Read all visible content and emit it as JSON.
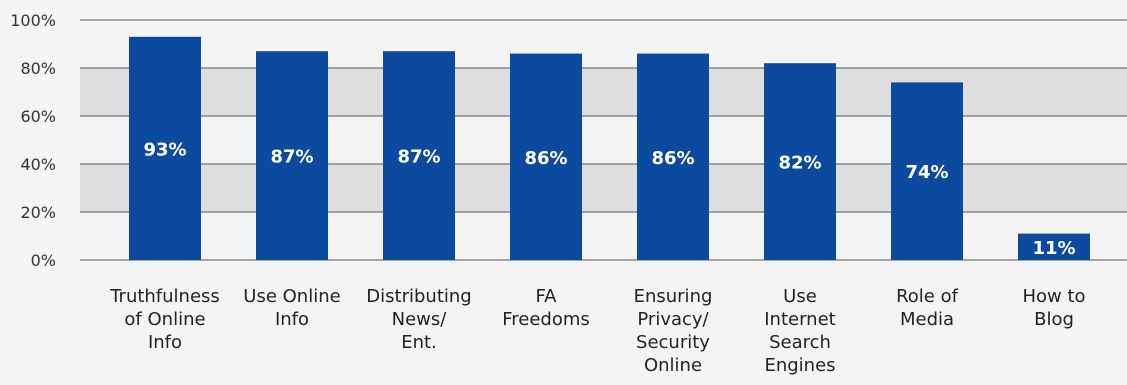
{
  "chart_data": {
    "type": "bar",
    "categories": [
      [
        "Truthfulness",
        "of Online",
        "Info"
      ],
      [
        "Use Online",
        "Info"
      ],
      [
        "Distributing",
        "News/",
        "Ent."
      ],
      [
        "FA",
        "Freedoms"
      ],
      [
        "Ensuring",
        "Privacy/",
        "Security",
        "Online"
      ],
      [
        "Use",
        "Internet",
        "Search",
        "Engines"
      ],
      [
        "Role of",
        "Media"
      ],
      [
        "How to",
        "Blog"
      ]
    ],
    "values": [
      93,
      87,
      87,
      86,
      86,
      82,
      74,
      11
    ],
    "value_labels": [
      "93%",
      "87%",
      "87%",
      "86%",
      "86%",
      "82%",
      "74%",
      "11%"
    ],
    "yticks": [
      0,
      20,
      40,
      60,
      80,
      100
    ],
    "ytick_labels": [
      "0%",
      "20%",
      "40%",
      "60%",
      "80%",
      "100%"
    ],
    "ylim": [
      0,
      100
    ],
    "title": "",
    "xlabel": "",
    "ylabel": "",
    "grid": true,
    "bar_color": "#0b4a9e",
    "band_color": "#dedede",
    "background_color": "#f4f4f4"
  }
}
